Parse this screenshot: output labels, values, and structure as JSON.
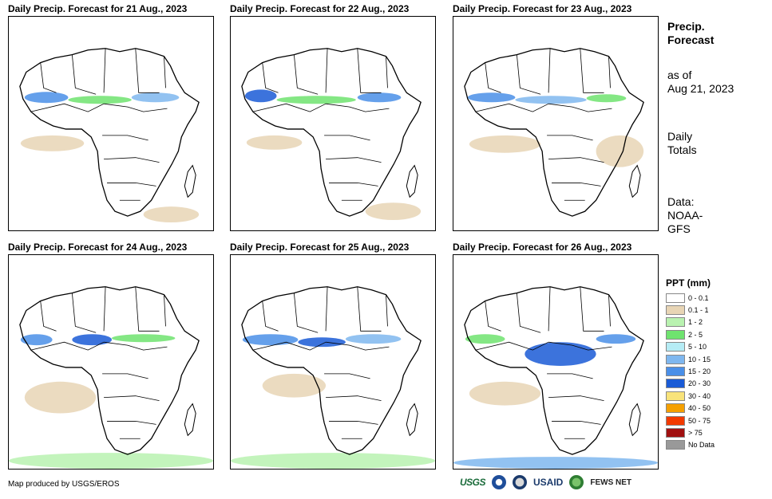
{
  "panels": [
    {
      "title": "Daily Precip. Forecast for 21 Aug., 2023"
    },
    {
      "title": "Daily Precip. Forecast for 22 Aug., 2023"
    },
    {
      "title": "Daily Precip. Forecast for 23 Aug., 2023"
    },
    {
      "title": "Daily Precip. Forecast for 24 Aug., 2023"
    },
    {
      "title": "Daily Precip. Forecast for 25 Aug., 2023"
    },
    {
      "title": "Daily Precip. Forecast for 26 Aug., 2023"
    }
  ],
  "side": {
    "title_line1": "Precip.",
    "title_line2": "Forecast",
    "asof_line1": "as of",
    "asof_line2": "Aug 21, 2023",
    "totals_line1": "Daily",
    "totals_line2": "Totals",
    "source_line1": "Data:",
    "source_line2": "NOAA-",
    "source_line3": "GFS"
  },
  "legend": {
    "title": "PPT (mm)",
    "items": [
      {
        "label": "0 - 0.1",
        "color": "#ffffff"
      },
      {
        "label": "0.1 - 1",
        "color": "#e8d5b5"
      },
      {
        "label": "1 - 2",
        "color": "#b9f2b0"
      },
      {
        "label": "2 - 5",
        "color": "#6fe36f"
      },
      {
        "label": "5 - 10",
        "color": "#b5ecf5"
      },
      {
        "label": "10 - 15",
        "color": "#7fb7ef"
      },
      {
        "label": "15 - 20",
        "color": "#4a8fe8"
      },
      {
        "label": "20 - 30",
        "color": "#1a5bd6"
      },
      {
        "label": "30 - 40",
        "color": "#f8e37a"
      },
      {
        "label": "40 - 50",
        "color": "#f5a000"
      },
      {
        "label": "50 - 75",
        "color": "#f23a00"
      },
      {
        "label": "> 75",
        "color": "#a01010"
      },
      {
        "label": "No Data",
        "color": "#999999"
      }
    ]
  },
  "credit": "Map produced by USGS/EROS",
  "logos": {
    "usgs": "USGS",
    "usaid": "USAID",
    "fews": "FEWS NET"
  }
}
